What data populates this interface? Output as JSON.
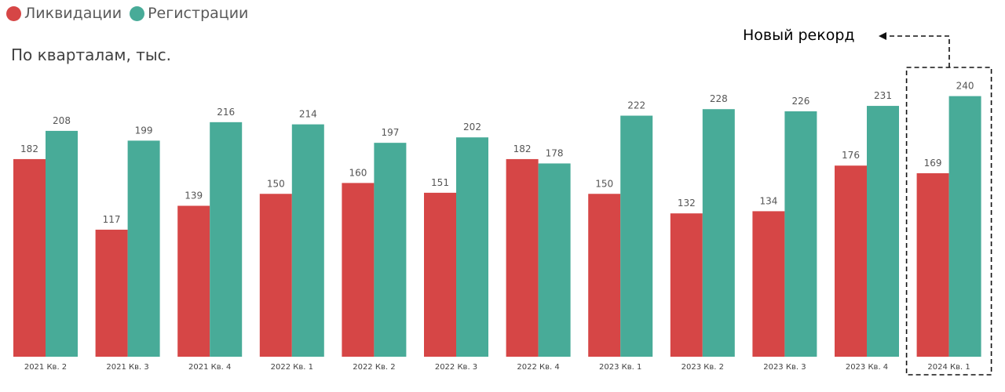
{
  "legend": {
    "items": [
      {
        "label": "Ликвидации",
        "color": "#d64646"
      },
      {
        "label": "Регистрации",
        "color": "#48ab98"
      }
    ]
  },
  "annotation": {
    "text": "Новый рекорд"
  },
  "chart_data": {
    "type": "bar",
    "title": "",
    "subtitle": "По кварталам, тыс.",
    "xlabel": "",
    "ylabel": "",
    "ylim": [
      0,
      240
    ],
    "grid": false,
    "legend_position": "top-left",
    "categories": [
      "2021 Кв. 2",
      "2021 Кв. 3",
      "2021 Кв. 4",
      "2022 Кв. 1",
      "2022 Кв. 2",
      "2022 Кв. 3",
      "2022 Кв. 4",
      "2023 Кв. 1",
      "2023 Кв. 2",
      "2023 Кв. 3",
      "2023 Кв. 4",
      "2024 Кв. 1"
    ],
    "series": [
      {
        "name": "Ликвидации",
        "color": "#d64646",
        "values": [
          182,
          117,
          139,
          150,
          160,
          151,
          182,
          150,
          132,
          134,
          176,
          169
        ]
      },
      {
        "name": "Регистрации",
        "color": "#48ab98",
        "values": [
          208,
          199,
          216,
          214,
          197,
          202,
          178,
          222,
          228,
          226,
          231,
          240
        ]
      }
    ],
    "highlight": {
      "category": "2024 Кв. 1",
      "label": "Новый рекорд"
    }
  }
}
